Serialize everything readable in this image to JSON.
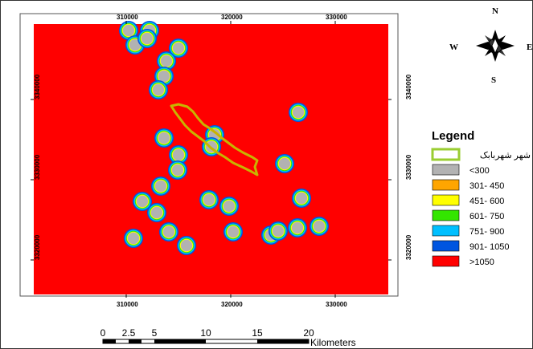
{
  "map": {
    "x_ticks": [
      "310000",
      "320000",
      "330000"
    ],
    "y_ticks": [
      "3340000",
      "3330000",
      "3320000"
    ],
    "background_class": ">1050",
    "wells": [
      {
        "class": "<300"
      },
      {
        "class": "<300"
      },
      {
        "class": "<300"
      },
      {
        "class": "<300"
      },
      {
        "class": "<300"
      },
      {
        "class": "<300"
      },
      {
        "class": "<300"
      },
      {
        "class": "<300"
      },
      {
        "class": "<300"
      },
      {
        "class": "<300"
      },
      {
        "class": "<300"
      },
      {
        "class": "<300"
      },
      {
        "class": "<300"
      },
      {
        "class": "<300"
      },
      {
        "class": "<300"
      },
      {
        "class": "<300"
      },
      {
        "class": "<300"
      },
      {
        "class": "<300"
      },
      {
        "class": "<300"
      },
      {
        "class": "<300"
      },
      {
        "class": "<300"
      },
      {
        "class": "<300"
      },
      {
        "class": "<300"
      },
      {
        "class": "<300"
      },
      {
        "class": "<300"
      },
      {
        "class": "<300"
      },
      {
        "class": "<300"
      },
      {
        "class": "<300"
      },
      {
        "class": "<300"
      },
      {
        "class": "<300"
      },
      {
        "class": "<300"
      },
      {
        "class": "<300"
      }
    ]
  },
  "compass": {
    "n": "N",
    "s": "S",
    "e": "E",
    "w": "W"
  },
  "legend": {
    "title": "Legend",
    "items": [
      {
        "label": "شهر شهربابک",
        "type": "outline",
        "color": "#9ACD32"
      },
      {
        "label": "<300",
        "type": "fill",
        "color": "#B2B2B2"
      },
      {
        "label": "301- 450",
        "type": "fill",
        "color": "#FFA500"
      },
      {
        "label": "451- 600",
        "type": "fill",
        "color": "#FFFF00"
      },
      {
        "label": "601- 750",
        "type": "fill",
        "color": "#33E600"
      },
      {
        "label": "751- 900",
        "type": "fill",
        "color": "#00BFFF"
      },
      {
        "label": "901- 1050",
        "type": "fill",
        "color": "#0055E0"
      },
      {
        "label": ">1050",
        "type": "fill",
        "color": "#FF0000"
      }
    ]
  },
  "scale_bar": {
    "labels": [
      "0",
      "2.5",
      "5",
      "10",
      "15",
      "20"
    ],
    "unit": "Kilometers"
  }
}
